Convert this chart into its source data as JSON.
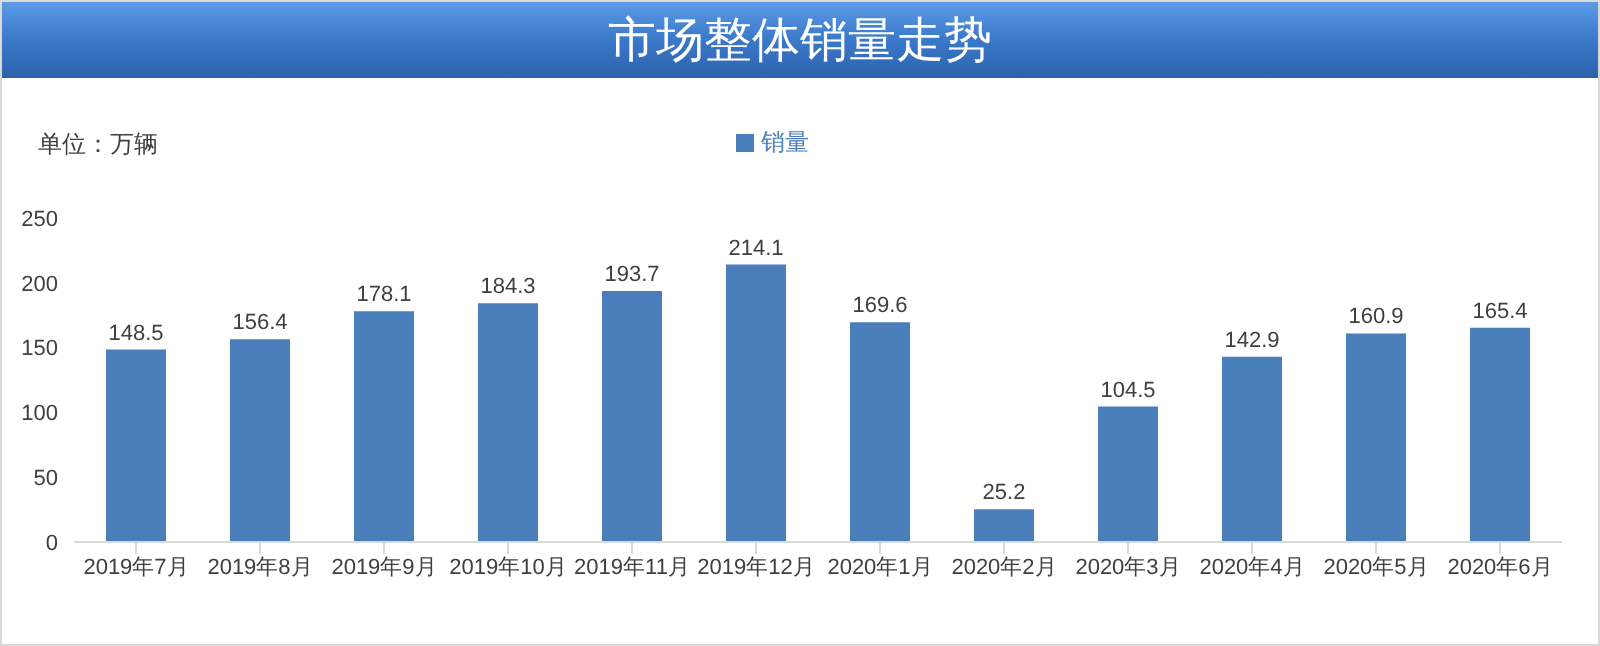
{
  "chart_data": {
    "type": "bar",
    "title": "市场整体销量走势",
    "ylabel": "单位：万辆",
    "categories": [
      "2019年7月",
      "2019年8月",
      "2019年9月",
      "2019年10月",
      "2019年11月",
      "2019年12月",
      "2020年1月",
      "2020年2月",
      "2020年3月",
      "2020年4月",
      "2020年5月",
      "2020年6月"
    ],
    "series": [
      {
        "name": "销量",
        "color": "#4a7ebb",
        "values": [
          148.5,
          156.4,
          178.1,
          184.3,
          193.7,
          214.1,
          169.6,
          25.2,
          104.5,
          142.9,
          160.9,
          165.4
        ]
      }
    ],
    "ylim": [
      0,
      250
    ],
    "yticks": [
      0,
      50,
      100,
      150,
      200,
      250
    ],
    "data_labels": true,
    "legend": "top"
  }
}
